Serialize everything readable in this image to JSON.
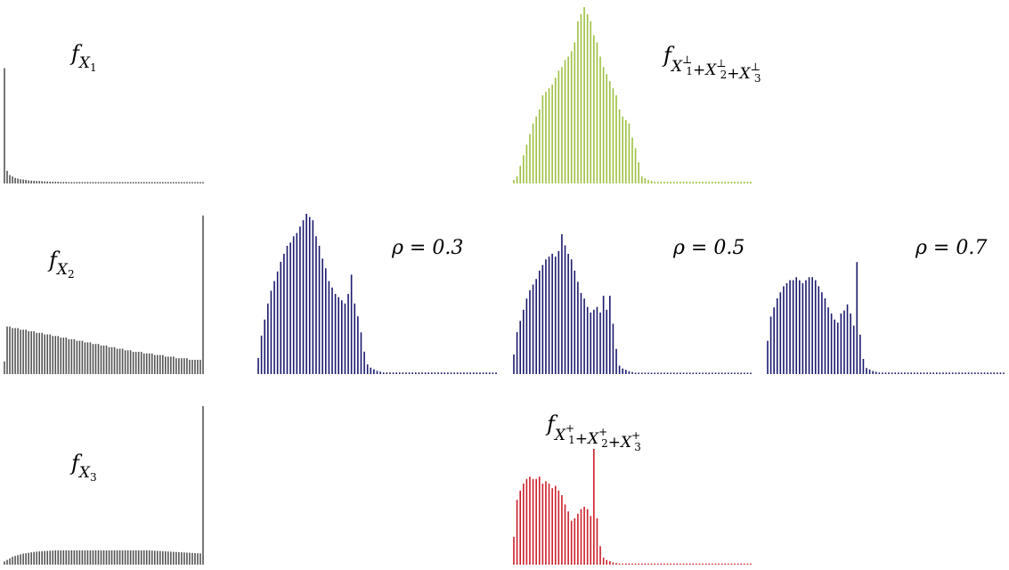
{
  "chart_data": [
    {
      "id": "fX1",
      "type": "bar",
      "label": {
        "base": "f",
        "sub": "X",
        "subsub": "1"
      },
      "color": "#555555",
      "x": [
        0,
        1,
        2,
        3,
        4,
        5,
        6,
        7,
        8,
        9,
        10,
        11,
        12,
        13,
        14,
        15,
        16,
        17,
        18,
        19,
        20,
        21,
        22,
        23,
        24,
        25,
        26,
        27,
        28,
        29,
        30,
        31,
        32,
        33,
        34,
        35,
        36,
        37,
        38,
        39,
        40,
        41,
        42,
        43,
        44,
        45,
        46,
        47,
        48,
        49,
        50,
        51,
        52,
        53,
        54,
        55,
        56,
        57,
        58,
        59,
        60,
        61,
        62,
        63,
        64,
        65,
        66,
        67,
        68,
        69,
        70,
        71,
        72,
        73,
        74
      ],
      "values": [
        0.82,
        0.09,
        0.06,
        0.05,
        0.04,
        0.035,
        0.03,
        0.028,
        0.025,
        0.022,
        0.02,
        0.019,
        0.018,
        0.017,
        0.016,
        0.015,
        0.014,
        0.013,
        0.013,
        0.012,
        0.012,
        0.011,
        0.011,
        0.011,
        0.01,
        0.01,
        0.01,
        0.01,
        0.01,
        0.01,
        0.01,
        0.01,
        0.01,
        0.01,
        0.01,
        0.01,
        0.01,
        0.01,
        0.01,
        0.01,
        0.01,
        0.01,
        0.01,
        0.01,
        0.01,
        0.01,
        0.01,
        0.01,
        0.01,
        0.01,
        0.01,
        0.01,
        0.01,
        0.01,
        0.01,
        0.01,
        0.01,
        0.01,
        0.01,
        0.01,
        0.01,
        0.01,
        0.01,
        0.01,
        0.01,
        0.01,
        0.01,
        0.01,
        0.01,
        0.01,
        0.01,
        0.01,
        0.01,
        0.01,
        0.01
      ],
      "ylim": [
        0,
        1
      ]
    },
    {
      "id": "fX2",
      "type": "bar",
      "label": {
        "base": "f",
        "sub": "X",
        "subsub": "2"
      },
      "color": "#555555",
      "x": [
        0,
        1,
        2,
        3,
        4,
        5,
        6,
        7,
        8,
        9,
        10,
        11,
        12,
        13,
        14,
        15,
        16,
        17,
        18,
        19,
        20,
        21,
        22,
        23,
        24,
        25,
        26,
        27,
        28,
        29,
        30,
        31,
        32,
        33,
        34,
        35,
        36,
        37,
        38,
        39,
        40,
        41,
        42,
        43,
        44,
        45,
        46,
        47,
        48,
        49,
        50,
        51,
        52,
        53,
        54,
        55,
        56,
        57,
        58,
        59,
        60,
        61,
        62,
        63,
        64,
        65,
        66,
        67,
        68,
        69,
        70,
        71,
        72,
        73,
        74
      ],
      "values": [
        0.08,
        0.3,
        0.3,
        0.29,
        0.29,
        0.29,
        0.28,
        0.28,
        0.28,
        0.27,
        0.27,
        0.27,
        0.26,
        0.26,
        0.26,
        0.25,
        0.25,
        0.25,
        0.24,
        0.24,
        0.24,
        0.23,
        0.23,
        0.23,
        0.22,
        0.22,
        0.22,
        0.21,
        0.21,
        0.21,
        0.2,
        0.2,
        0.2,
        0.19,
        0.19,
        0.19,
        0.18,
        0.18,
        0.18,
        0.17,
        0.17,
        0.17,
        0.16,
        0.16,
        0.16,
        0.15,
        0.15,
        0.15,
        0.14,
        0.14,
        0.14,
        0.14,
        0.13,
        0.13,
        0.13,
        0.13,
        0.12,
        0.12,
        0.12,
        0.12,
        0.11,
        0.11,
        0.11,
        0.11,
        0.1,
        0.1,
        0.1,
        0.1,
        0.1,
        0.09,
        0.09,
        0.09,
        0.09,
        0.09,
        1.0
      ],
      "ylim": [
        0,
        1
      ]
    },
    {
      "id": "fX3",
      "type": "bar",
      "label": {
        "base": "f",
        "sub": "X",
        "subsub": "3"
      },
      "color": "#555555",
      "x": [
        0,
        1,
        2,
        3,
        4,
        5,
        6,
        7,
        8,
        9,
        10,
        11,
        12,
        13,
        14,
        15,
        16,
        17,
        18,
        19,
        20,
        21,
        22,
        23,
        24,
        25,
        26,
        27,
        28,
        29,
        30,
        31,
        32,
        33,
        34,
        35,
        36,
        37,
        38,
        39,
        40,
        41,
        42,
        43,
        44,
        45,
        46,
        47,
        48,
        49,
        50,
        51,
        52,
        53,
        54,
        55,
        56,
        57,
        58,
        59,
        60,
        61,
        62,
        63,
        64,
        65,
        66,
        67,
        68,
        69,
        70,
        71,
        72,
        73,
        74
      ],
      "values": [
        0.02,
        0.03,
        0.04,
        0.05,
        0.055,
        0.06,
        0.065,
        0.07,
        0.072,
        0.075,
        0.078,
        0.08,
        0.082,
        0.084,
        0.085,
        0.086,
        0.087,
        0.088,
        0.089,
        0.09,
        0.09,
        0.09,
        0.09,
        0.09,
        0.09,
        0.09,
        0.09,
        0.09,
        0.09,
        0.09,
        0.09,
        0.09,
        0.09,
        0.09,
        0.09,
        0.09,
        0.09,
        0.09,
        0.09,
        0.09,
        0.09,
        0.09,
        0.09,
        0.09,
        0.09,
        0.09,
        0.09,
        0.09,
        0.09,
        0.09,
        0.09,
        0.09,
        0.09,
        0.09,
        0.09,
        0.089,
        0.088,
        0.087,
        0.086,
        0.085,
        0.084,
        0.083,
        0.082,
        0.081,
        0.08,
        0.079,
        0.078,
        0.077,
        0.076,
        0.075,
        0.074,
        0.073,
        0.072,
        0.071,
        1.0
      ],
      "ylim": [
        0,
        1
      ]
    },
    {
      "id": "comonotonic-lower",
      "type": "bar",
      "label": {
        "base": "f",
        "terms": [
          "X",
          "X",
          "X"
        ],
        "indices": [
          "1",
          "2",
          "3"
        ],
        "sup": "⊥"
      },
      "color": "#9dc143",
      "x": [
        0,
        1,
        2,
        3,
        4,
        5,
        6,
        7,
        8,
        9,
        10,
        11,
        12,
        13,
        14,
        15,
        16,
        17,
        18,
        19,
        20,
        21,
        22,
        23,
        24,
        25,
        26,
        27,
        28,
        29,
        30,
        31,
        32,
        33,
        34,
        35,
        36,
        37,
        38,
        39,
        40,
        41,
        42,
        43,
        44,
        45,
        46,
        47,
        48,
        49,
        50,
        51,
        52,
        53,
        54,
        55,
        56,
        57,
        58,
        59,
        60,
        61,
        62,
        63,
        64,
        65,
        66,
        67,
        68,
        69,
        70,
        71,
        72,
        73,
        74
      ],
      "values": [
        0.02,
        0.04,
        0.1,
        0.16,
        0.22,
        0.28,
        0.34,
        0.38,
        0.42,
        0.5,
        0.52,
        0.54,
        0.56,
        0.6,
        0.64,
        0.66,
        0.7,
        0.72,
        0.75,
        0.8,
        0.92,
        0.96,
        1.0,
        0.96,
        0.92,
        0.84,
        0.8,
        0.72,
        0.66,
        0.62,
        0.58,
        0.54,
        0.5,
        0.42,
        0.38,
        0.36,
        0.34,
        0.26,
        0.2,
        0.12,
        0.04,
        0.03,
        0.02,
        0.015,
        0.01,
        0.01,
        0.01,
        0.01,
        0.01,
        0.01,
        0.01,
        0.01,
        0.01,
        0.01,
        0.01,
        0.01,
        0.01,
        0.01,
        0.01,
        0.01,
        0.01,
        0.01,
        0.01,
        0.01,
        0.01,
        0.01,
        0.01,
        0.01,
        0.01,
        0.01,
        0.01,
        0.01,
        0.01,
        0.01,
        0.01
      ],
      "ylim": [
        0,
        1
      ]
    },
    {
      "id": "rho-0.3",
      "type": "bar",
      "label": "ρ = 0.3",
      "color": "#1a1a6e",
      "x": [
        0,
        1,
        2,
        3,
        4,
        5,
        6,
        7,
        8,
        9,
        10,
        11,
        12,
        13,
        14,
        15,
        16,
        17,
        18,
        19,
        20,
        21,
        22,
        23,
        24,
        25,
        26,
        27,
        28,
        29,
        30,
        31,
        32,
        33,
        34,
        35,
        36,
        37,
        38,
        39,
        40,
        41,
        42,
        43,
        44,
        45,
        46,
        47,
        48,
        49,
        50,
        51,
        52,
        53,
        54,
        55,
        56,
        57,
        58,
        59,
        60,
        61,
        62,
        63,
        64,
        65,
        66,
        67,
        68,
        69,
        70,
        71,
        72,
        73,
        74
      ],
      "values": [
        0.1,
        0.24,
        0.34,
        0.44,
        0.52,
        0.58,
        0.64,
        0.7,
        0.75,
        0.8,
        0.82,
        0.86,
        0.88,
        0.92,
        0.96,
        1.0,
        0.98,
        0.96,
        0.86,
        0.8,
        0.72,
        0.66,
        0.58,
        0.54,
        0.5,
        0.48,
        0.46,
        0.44,
        0.5,
        0.62,
        0.44,
        0.36,
        0.26,
        0.14,
        0.06,
        0.04,
        0.03,
        0.02,
        0.015,
        0.01,
        0.01,
        0.01,
        0.01,
        0.01,
        0.01,
        0.01,
        0.01,
        0.01,
        0.01,
        0.01,
        0.01,
        0.01,
        0.01,
        0.01,
        0.01,
        0.01,
        0.01,
        0.01,
        0.01,
        0.01,
        0.01,
        0.01,
        0.01,
        0.01,
        0.01,
        0.01,
        0.01,
        0.01,
        0.01,
        0.01,
        0.01,
        0.01,
        0.01,
        0.01,
        0.01
      ],
      "ylim": [
        0,
        1
      ]
    },
    {
      "id": "rho-0.5",
      "type": "bar",
      "label": "ρ = 0.5",
      "color": "#1a1a6e",
      "x": [
        0,
        1,
        2,
        3,
        4,
        5,
        6,
        7,
        8,
        9,
        10,
        11,
        12,
        13,
        14,
        15,
        16,
        17,
        18,
        19,
        20,
        21,
        22,
        23,
        24,
        25,
        26,
        27,
        28,
        29,
        30,
        31,
        32,
        33,
        34,
        35,
        36,
        37,
        38,
        39,
        40,
        41,
        42,
        43,
        44,
        45,
        46,
        47,
        48,
        49,
        50,
        51,
        52,
        53,
        54,
        55,
        56,
        57,
        58,
        59,
        60,
        61,
        62,
        63,
        64,
        65,
        66,
        67,
        68,
        69,
        70,
        71,
        72,
        73,
        74
      ],
      "values": [
        0.14,
        0.3,
        0.38,
        0.46,
        0.54,
        0.6,
        0.64,
        0.68,
        0.74,
        0.78,
        0.82,
        0.84,
        0.86,
        0.84,
        0.88,
        1.0,
        0.92,
        0.86,
        0.82,
        0.74,
        0.66,
        0.58,
        0.54,
        0.48,
        0.44,
        0.46,
        0.48,
        0.44,
        0.56,
        0.46,
        0.56,
        0.36,
        0.18,
        0.06,
        0.04,
        0.03,
        0.02,
        0.015,
        0.01,
        0.01,
        0.01,
        0.01,
        0.01,
        0.01,
        0.01,
        0.01,
        0.01,
        0.01,
        0.01,
        0.01,
        0.01,
        0.01,
        0.01,
        0.01,
        0.01,
        0.01,
        0.01,
        0.01,
        0.01,
        0.01,
        0.01,
        0.01,
        0.01,
        0.01,
        0.01,
        0.01,
        0.01,
        0.01,
        0.01,
        0.01,
        0.01,
        0.01,
        0.01,
        0.01,
        0.01
      ],
      "ylim": [
        0,
        1
      ]
    },
    {
      "id": "rho-0.7",
      "type": "bar",
      "label": "ρ = 0.7",
      "color": "#1a1a6e",
      "x": [
        0,
        1,
        2,
        3,
        4,
        5,
        6,
        7,
        8,
        9,
        10,
        11,
        12,
        13,
        14,
        15,
        16,
        17,
        18,
        19,
        20,
        21,
        22,
        23,
        24,
        25,
        26,
        27,
        28,
        29,
        30,
        31,
        32,
        33,
        34,
        35,
        36,
        37,
        38,
        39,
        40,
        41,
        42,
        43,
        44,
        45,
        46,
        47,
        48,
        49,
        50,
        51,
        52,
        53,
        54,
        55,
        56,
        57,
        58,
        59,
        60,
        61,
        62,
        63,
        64,
        65,
        66,
        67,
        68,
        69,
        70,
        71,
        72,
        73,
        74
      ],
      "values": [
        0.22,
        0.38,
        0.44,
        0.5,
        0.54,
        0.58,
        0.6,
        0.62,
        0.62,
        0.64,
        0.62,
        0.6,
        0.62,
        0.64,
        0.64,
        0.62,
        0.58,
        0.54,
        0.5,
        0.44,
        0.4,
        0.36,
        0.34,
        0.4,
        0.42,
        0.46,
        0.4,
        0.32,
        0.74,
        0.26,
        0.1,
        0.04,
        0.03,
        0.02,
        0.015,
        0.01,
        0.01,
        0.01,
        0.01,
        0.01,
        0.01,
        0.01,
        0.01,
        0.01,
        0.01,
        0.01,
        0.01,
        0.01,
        0.01,
        0.01,
        0.01,
        0.01,
        0.01,
        0.01,
        0.01,
        0.01,
        0.01,
        0.01,
        0.01,
        0.01,
        0.01,
        0.01,
        0.01,
        0.01,
        0.01,
        0.01,
        0.01,
        0.01,
        0.01,
        0.01,
        0.01,
        0.01,
        0.01,
        0.01,
        0.01
      ],
      "ylim": [
        0,
        1
      ]
    },
    {
      "id": "comonotonic-upper",
      "type": "bar",
      "label": {
        "base": "f",
        "terms": [
          "X",
          "X",
          "X"
        ],
        "indices": [
          "1",
          "2",
          "3"
        ],
        "sup": "+"
      },
      "color": "#cc1f2a",
      "x": [
        0,
        1,
        2,
        3,
        4,
        5,
        6,
        7,
        8,
        9,
        10,
        11,
        12,
        13,
        14,
        15,
        16,
        17,
        18,
        19,
        20,
        21,
        22,
        23,
        24,
        25,
        26,
        27,
        28,
        29,
        30,
        31,
        32,
        33,
        34,
        35,
        36,
        37,
        38,
        39,
        40,
        41,
        42,
        43,
        44,
        45,
        46,
        47,
        48,
        49,
        50,
        51,
        52,
        53,
        54,
        55,
        56,
        57,
        58,
        59,
        60,
        61,
        62,
        63,
        64,
        65,
        66,
        67,
        68,
        69,
        70,
        71,
        72,
        73,
        74
      ],
      "values": [
        0.24,
        0.56,
        0.64,
        0.7,
        0.74,
        0.76,
        0.74,
        0.74,
        0.76,
        0.7,
        0.72,
        0.7,
        0.66,
        0.68,
        0.64,
        0.6,
        0.52,
        0.46,
        0.38,
        0.4,
        0.44,
        0.48,
        0.5,
        0.48,
        0.42,
        1.0,
        0.4,
        0.16,
        0.06,
        0.04,
        0.03,
        0.02,
        0.015,
        0.01,
        0.01,
        0.01,
        0.01,
        0.01,
        0.01,
        0.01,
        0.01,
        0.01,
        0.01,
        0.01,
        0.01,
        0.01,
        0.01,
        0.01,
        0.01,
        0.01,
        0.01,
        0.01,
        0.01,
        0.01,
        0.01,
        0.01,
        0.01,
        0.01,
        0.01,
        0.01,
        0.01,
        0.01,
        0.01,
        0.01,
        0.01,
        0.01,
        0.01,
        0.01,
        0.01,
        0.01,
        0.01,
        0.01,
        0.01,
        0.01,
        0.01
      ],
      "ylim": [
        0,
        1
      ]
    }
  ]
}
